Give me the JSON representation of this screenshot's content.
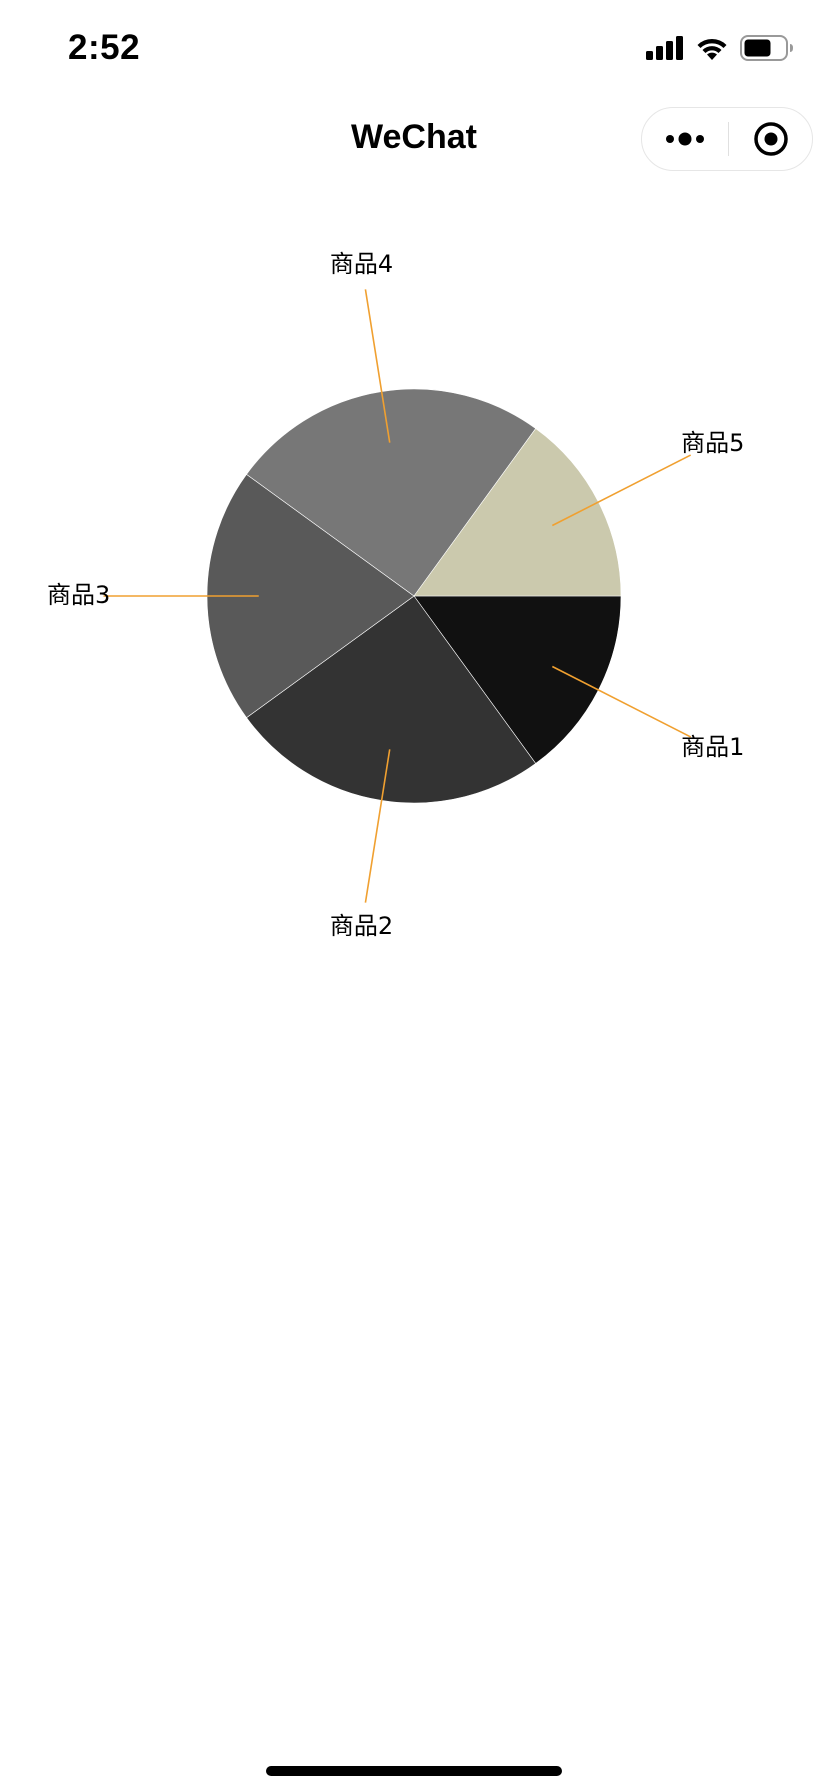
{
  "status_bar": {
    "time": "2:52"
  },
  "nav": {
    "title": "WeChat"
  },
  "chart_data": {
    "type": "pie",
    "categories": [
      "商品1",
      "商品2",
      "商品3",
      "商品4",
      "商品5"
    ],
    "values": [
      15,
      25,
      20,
      25,
      15
    ],
    "colors": [
      "#111111",
      "#333333",
      "#595959",
      "#777777",
      "#cbc9ad"
    ],
    "leader_line_color": "#f0a030",
    "start_angle_deg": 0,
    "direction": "clockwise"
  }
}
